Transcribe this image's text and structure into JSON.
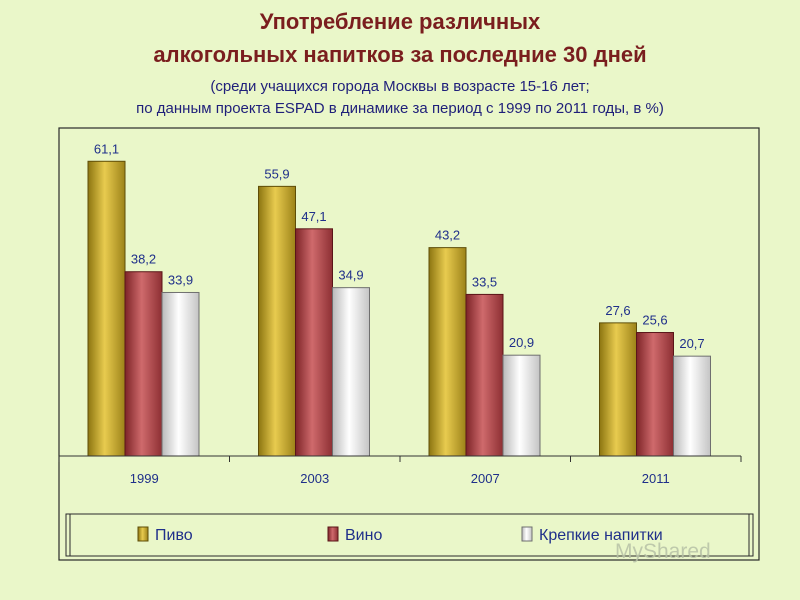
{
  "title_line1": "Употребление различных",
  "title_line2": "алкогольных напитков за последние 30 дней",
  "subtitle_line1": "(среди учащихся города Москвы в возрасте 15-16 лет;",
  "subtitle_line2": "по данным проекта ESPAD в динамике за период с 1999 по 2011 годы, в %)",
  "watermark": "MyShared",
  "colors": {
    "background": "#eaf7c9",
    "title": "#7a1e1e",
    "text": "#1f2f8a",
    "beer": "#c9a628",
    "wine": "#b8474a",
    "spirits": "#efefef"
  },
  "chart_data": {
    "type": "bar",
    "categories": [
      "1999",
      "2003",
      "2007",
      "2011"
    ],
    "series": [
      {
        "name": "Пиво",
        "values": [
          61.1,
          55.9,
          43.2,
          27.6
        ],
        "labels": [
          "61,1",
          "55,9",
          "43,2",
          "27,6"
        ]
      },
      {
        "name": "Вино",
        "values": [
          38.2,
          47.1,
          33.5,
          25.6
        ],
        "labels": [
          "38,2",
          "47,1",
          "33,5",
          "25,6"
        ]
      },
      {
        "name": "Крепкие напитки",
        "values": [
          33.9,
          34.9,
          20.9,
          20.7
        ],
        "labels": [
          "33,9",
          "34,9",
          "20,9",
          "20,7"
        ]
      }
    ],
    "ylim": [
      0,
      68
    ],
    "legend_position": "bottom",
    "grid": false
  }
}
